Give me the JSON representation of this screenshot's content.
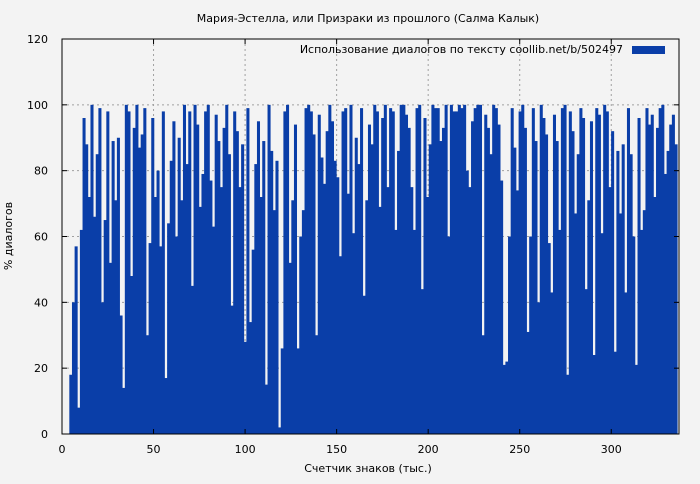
{
  "chart_data": {
    "type": "bar",
    "title": "Мария-Эстелла, или Призраки из прошлого (Салма Калык)",
    "xlabel": "Счетчик знаков (тыс.)",
    "ylabel": "% диалогов",
    "xlim": [
      0,
      337
    ],
    "ylim": [
      0,
      120
    ],
    "xticks": [
      0,
      50,
      100,
      150,
      200,
      250,
      300
    ],
    "yticks": [
      0,
      20,
      40,
      60,
      80,
      100,
      120
    ],
    "grid": true,
    "legend_position": "top-right",
    "bar_color": "#0a3ea8",
    "series": [
      {
        "name": "Использование диалогов по тексту  coollib.net/b/502497",
        "x_start": 4,
        "x_end": 336,
        "values": [
          18,
          40,
          57,
          8,
          62,
          96,
          88,
          72,
          100,
          66,
          85,
          99,
          40,
          65,
          98,
          52,
          89,
          71,
          90,
          36,
          14,
          100,
          98,
          48,
          93,
          100,
          87,
          91,
          99,
          30,
          58,
          96,
          72,
          80,
          57,
          98,
          17,
          64,
          83,
          95,
          60,
          90,
          71,
          100,
          82,
          98,
          45,
          100,
          94,
          69,
          79,
          98,
          100,
          77,
          63,
          97,
          89,
          75,
          93,
          100,
          85,
          39,
          98,
          92,
          75,
          88,
          28,
          99,
          34,
          56,
          82,
          95,
          72,
          89,
          15,
          100,
          86,
          68,
          83,
          2,
          26,
          98,
          100,
          52,
          71,
          94,
          26,
          60,
          68,
          99,
          100,
          98,
          91,
          30,
          97,
          84,
          76,
          92,
          100,
          95,
          83,
          78,
          54,
          98,
          99,
          73,
          100,
          61,
          90,
          82,
          99,
          42,
          71,
          94,
          88,
          100,
          98,
          69,
          96,
          100,
          75,
          99,
          98,
          62,
          86,
          100,
          100,
          97,
          93,
          75,
          62,
          99,
          100,
          44,
          96,
          72,
          88,
          100,
          99,
          99,
          89,
          93,
          100,
          60,
          100,
          98,
          98,
          100,
          99,
          100,
          80,
          75,
          95,
          99,
          100,
          100,
          30,
          97,
          93,
          85,
          100,
          99,
          94,
          77,
          21,
          22,
          60,
          99,
          87,
          74,
          98,
          100,
          93,
          31,
          60,
          99,
          89,
          40,
          100,
          96,
          91,
          58,
          43,
          97,
          89,
          62,
          99,
          100,
          18,
          98,
          92,
          67,
          85,
          99,
          96,
          44,
          71,
          95,
          24,
          99,
          97,
          61,
          100,
          98,
          75,
          92,
          25,
          86,
          67,
          88,
          43,
          99,
          85,
          60,
          21,
          96,
          62,
          68,
          99,
          94,
          97,
          72,
          93,
          99,
          100,
          79,
          86,
          94,
          97,
          88
        ]
      }
    ]
  }
}
